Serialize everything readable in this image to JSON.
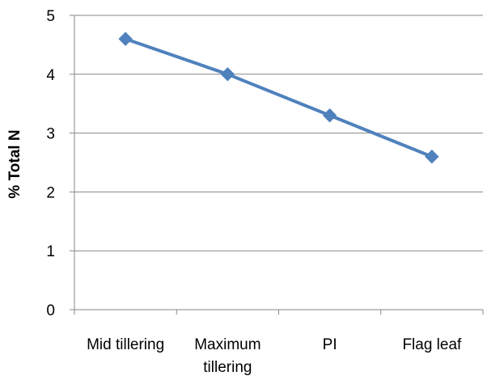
{
  "chart_data": {
    "type": "line",
    "title": "",
    "xlabel": "",
    "ylabel": "% Total N",
    "categories": [
      [
        "Mid tillering"
      ],
      [
        "Maximum",
        "tillering"
      ],
      [
        "PI"
      ],
      [
        "Flag leaf"
      ]
    ],
    "series": [
      {
        "values": [
          4.6,
          4.0,
          3.3,
          2.6
        ],
        "color": "#4F81BD",
        "marker": "diamond"
      }
    ],
    "ylim": [
      0,
      5
    ],
    "yticks": [
      0,
      1,
      2,
      3,
      4,
      5
    ],
    "grid": "horizontal",
    "gridColor": "#868686",
    "legend": "none"
  }
}
